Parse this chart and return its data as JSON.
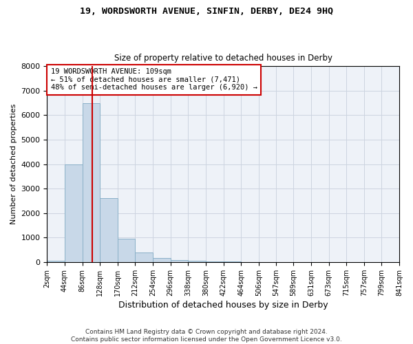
{
  "title": "19, WORDSWORTH AVENUE, SINFIN, DERBY, DE24 9HQ",
  "subtitle": "Size of property relative to detached houses in Derby",
  "xlabel": "Distribution of detached houses by size in Derby",
  "ylabel": "Number of detached properties",
  "footer_line1": "Contains HM Land Registry data © Crown copyright and database right 2024.",
  "footer_line2": "Contains public sector information licensed under the Open Government Licence v3.0.",
  "annotation_line1": "19 WORDSWORTH AVENUE: 109sqm",
  "annotation_line2": "← 51% of detached houses are smaller (7,471)",
  "annotation_line3": "48% of semi-detached houses are larger (6,920) →",
  "property_size": 109,
  "bin_edges": [
    2,
    44,
    86,
    128,
    170,
    212,
    254,
    296,
    338,
    380,
    422,
    464,
    506,
    547,
    589,
    631,
    673,
    715,
    757,
    799,
    841
  ],
  "bar_heights": [
    50,
    4000,
    6500,
    2600,
    950,
    400,
    150,
    75,
    50,
    30,
    10,
    5,
    3,
    2,
    1,
    1,
    0,
    0,
    0,
    0
  ],
  "bar_color": "#c8d8e8",
  "bar_edge_color": "#8ab0c8",
  "vline_color": "#cc0000",
  "annotation_box_color": "#cc0000",
  "background_color": "#eef2f8",
  "grid_color": "#ccd4e0",
  "ylim": [
    0,
    8000
  ],
  "yticks": [
    0,
    1000,
    2000,
    3000,
    4000,
    5000,
    6000,
    7000,
    8000
  ]
}
